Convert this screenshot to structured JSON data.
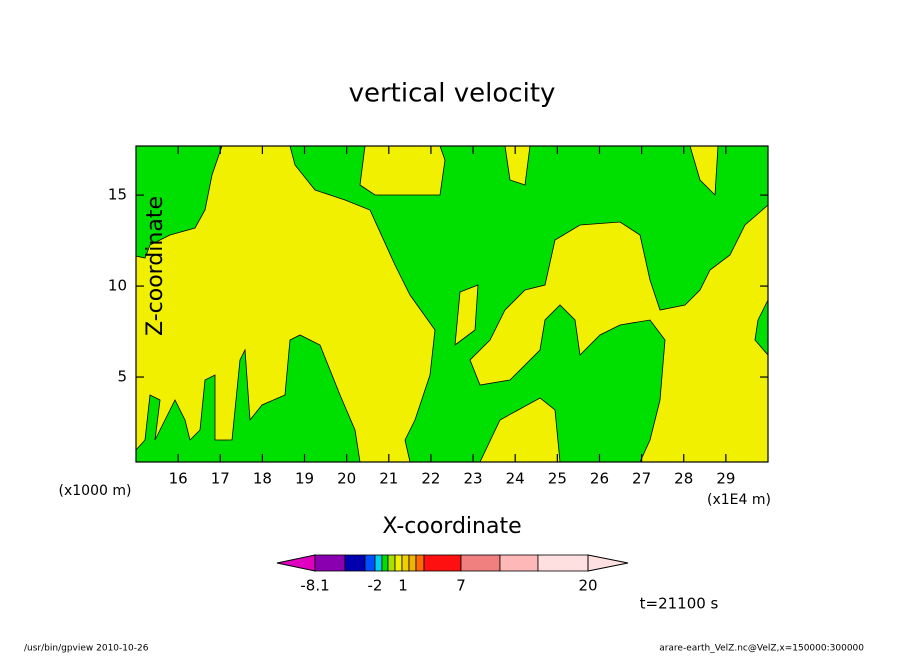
{
  "chart_data": {
    "type": "contour",
    "title": "vertical velocity",
    "x_label": "X-coordinate",
    "y_label": "Z-coordinate",
    "x_unit": "(x1E4 m)",
    "y_unit": "(x1000 m)",
    "xlim": [
      15,
      30
    ],
    "xticks": [
      16,
      17,
      18,
      19,
      20,
      21,
      22,
      23,
      24,
      25,
      26,
      27,
      28,
      29
    ],
    "ylim": [
      0.33,
      17.7
    ],
    "yticks": [
      5,
      10,
      15
    ],
    "time": "t=21100 s",
    "footer_left": "/usr/bin/gpview  2010-10-26",
    "footer_right": "arare-earth_VelZ.nc@VelZ,x=150000:300000",
    "colorbar": {
      "colors": [
        "#e000c0",
        "#8a00b0",
        "#0000b0",
        "#0050ff",
        "#00d0f0",
        "#00e000",
        "#a8e000",
        "#f0f000",
        "#f0d000",
        "#f0b400",
        "#ff6a00",
        "#ff1010",
        "#f08080",
        "#ffb8b8",
        "#ffe0e0"
      ],
      "ticks": [
        -8.1,
        -2,
        1,
        7,
        20
      ]
    }
  }
}
